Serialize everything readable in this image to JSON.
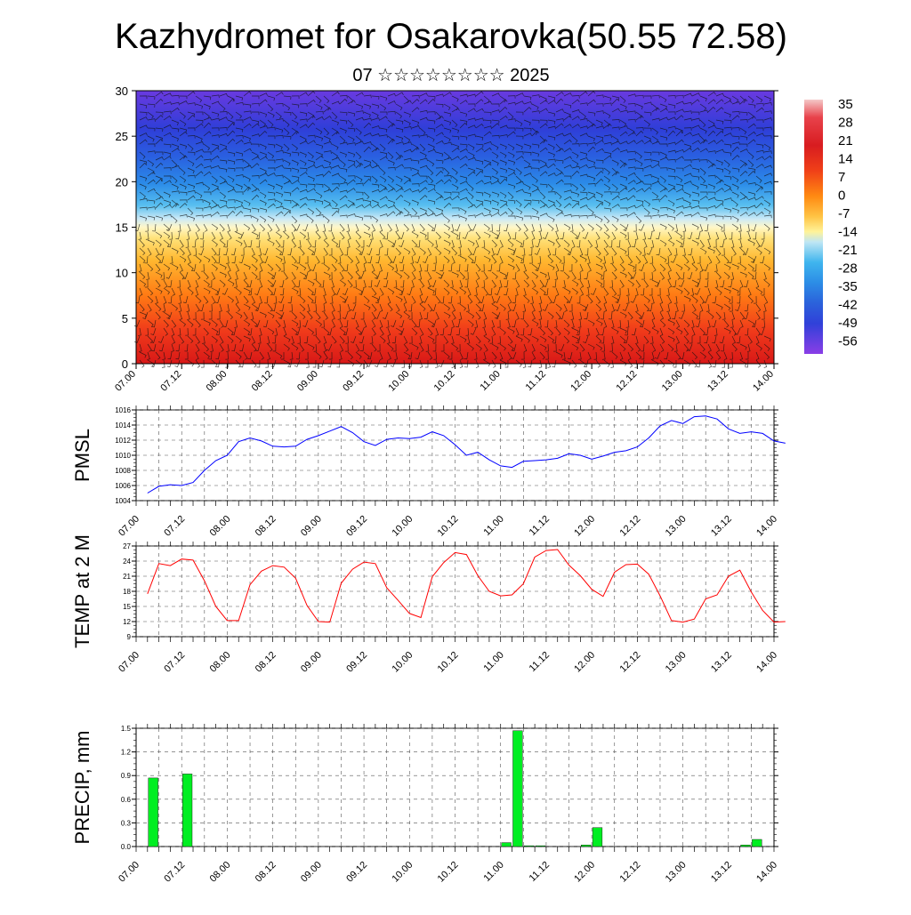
{
  "title": "Kazhydromet for Osakarovka(50.55 72.58)",
  "subtitle": "07 ☆☆☆☆☆☆☆☆ 2025",
  "time_ticks": [
    "07.00",
    "07.12",
    "08.00",
    "08.12",
    "09.00",
    "09.12",
    "10.00",
    "10.12",
    "11.00",
    "11.12",
    "12.00",
    "12.12",
    "13.00",
    "13.12",
    "14.00"
  ],
  "colorbar": {
    "labels": [
      "35",
      "28",
      "21",
      "14",
      "7",
      "0",
      "-7",
      "-14",
      "-21",
      "-28",
      "-35",
      "-42",
      "-49",
      "-56"
    ],
    "colors": [
      "#f2b6b6",
      "#e8424b",
      "#d81c20",
      "#f04018",
      "#ff8a12",
      "#ffc445",
      "#fff39a",
      "#bfe6f4",
      "#3fb5ee",
      "#2c8de6",
      "#2b62db",
      "#3041d9",
      "#4a35e0",
      "#8a3ee6"
    ]
  },
  "chart_data": [
    {
      "type": "heatmap",
      "title": "",
      "xlabel": "",
      "ylabel": "",
      "x_range": [
        "07.00",
        "14.00"
      ],
      "ylim": [
        0,
        30
      ],
      "y_ticks": [
        0,
        5,
        10,
        15,
        20,
        25,
        30
      ],
      "color_range": [
        -56,
        35
      ],
      "overlay": "wind barbs",
      "description_levels": [
        {
          "height": 0,
          "approx_temp": 28
        },
        {
          "height": 5,
          "approx_temp": 18
        },
        {
          "height": 10,
          "approx_temp": 8
        },
        {
          "height": 15,
          "approx_temp": -7
        },
        {
          "height": 18,
          "approx_temp": -21
        },
        {
          "height": 22,
          "approx_temp": -35
        },
        {
          "height": 26,
          "approx_temp": -49
        },
        {
          "height": 30,
          "approx_temp": -56
        }
      ]
    },
    {
      "type": "line",
      "ylabel": "PMSL",
      "ylim": [
        1004,
        1016
      ],
      "y_ticks": [
        1004,
        1006,
        1008,
        1010,
        1012,
        1014,
        1016
      ],
      "color": "#0000ff",
      "x_step_hours": 3,
      "x_start": "07.03",
      "values": [
        1005.0,
        1005.9,
        1006.1,
        1006.0,
        1006.4,
        1008.0,
        1009.3,
        1010.0,
        1011.8,
        1012.3,
        1011.9,
        1011.2,
        1011.1,
        1011.2,
        1012.1,
        1012.6,
        1013.2,
        1013.8,
        1013.0,
        1011.8,
        1011.3,
        1012.1,
        1012.3,
        1012.2,
        1012.4,
        1013.1,
        1012.6,
        1011.4,
        1010.0,
        1010.4,
        1009.4,
        1008.6,
        1008.4,
        1009.2,
        1009.3,
        1009.4,
        1009.6,
        1010.2,
        1010.0,
        1009.5,
        1009.9,
        1010.4,
        1010.6,
        1011.1,
        1012.3,
        1013.9,
        1014.6,
        1014.2,
        1015.1,
        1015.2,
        1014.8,
        1013.5,
        1012.9,
        1013.1,
        1012.9,
        1011.9,
        1011.6
      ]
    },
    {
      "type": "line",
      "ylabel": "TEMP at 2 M",
      "ylim": [
        9,
        27
      ],
      "y_ticks": [
        9,
        12,
        15,
        18,
        21,
        24,
        27
      ],
      "color": "#ff0000",
      "x_step_hours": 3,
      "x_start": "07.03",
      "values": [
        17.5,
        23.5,
        23.1,
        24.4,
        24.2,
        20.1,
        15.0,
        12.2,
        12.2,
        19.3,
        22.0,
        23.1,
        22.8,
        20.6,
        15.2,
        12.0,
        11.9,
        19.6,
        22.4,
        23.8,
        23.5,
        18.7,
        16.2,
        13.6,
        12.8,
        20.9,
        23.7,
        25.7,
        25.3,
        21.1,
        18.0,
        17.1,
        17.3,
        19.5,
        24.8,
        26.1,
        26.3,
        23.2,
        21.1,
        18.4,
        17.0,
        21.8,
        23.3,
        23.4,
        21.4,
        17.1,
        12.2,
        11.9,
        12.5,
        16.5,
        17.3,
        21.0,
        22.2,
        17.9,
        14.2,
        11.9,
        12.0
      ]
    },
    {
      "type": "bar",
      "ylabel": "PRECIP, mm",
      "ylim": [
        0,
        1.5
      ],
      "y_ticks": [
        "0.0",
        "0.3",
        "0.6",
        "0.9",
        "1.2",
        "1.5"
      ],
      "color": "#00ee22",
      "x_step_hours": 3,
      "x_start": "07.03",
      "values": [
        0,
        0.87,
        0,
        0,
        0.92,
        0,
        0,
        0,
        0,
        0,
        0,
        0,
        0,
        0,
        0,
        0,
        0,
        0,
        0,
        0,
        0,
        0,
        0,
        0,
        0,
        0,
        0,
        0,
        0,
        0,
        0,
        0,
        0.05,
        1.47,
        0.01,
        0.01,
        0,
        0,
        0,
        0.02,
        0.24,
        0,
        0,
        0,
        0,
        0,
        0,
        0,
        0,
        0,
        0,
        0,
        0,
        0.02,
        0.09,
        0,
        0
      ]
    }
  ]
}
